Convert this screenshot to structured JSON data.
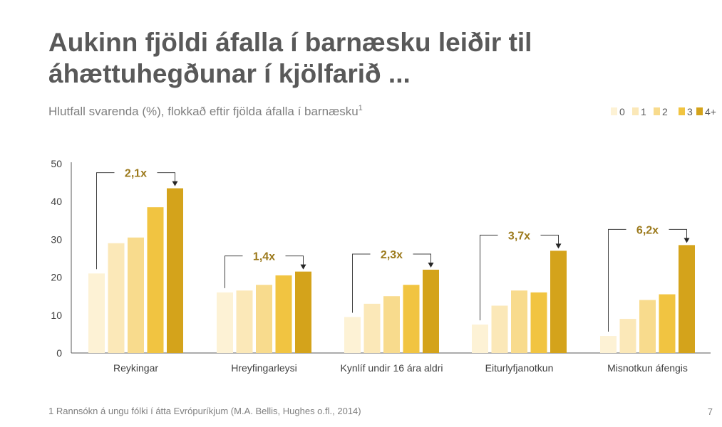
{
  "title_lines": [
    "Aukinn fjöldi áfalla í barnæsku leiðir til",
    "áhættuhegðunar í kjölfarið ..."
  ],
  "subtitle": "Hlutfall svarenda (%), flokkað eftir fjölda áfalla í barnæsku",
  "subtitle_sup": "1",
  "footnote": "1 Rannsókn á ungu fólki í átta Evrópuríkjum (M.A. Bellis, Hughes o.fl., 2014)",
  "page_number": "7",
  "chart_data": {
    "type": "bar",
    "categories": [
      "Reykingar",
      "Hreyfingarleysi",
      "Kynlíf undir 16 ára aldri",
      "Eiturlyfjanotkun",
      "Misnotkun áfengis"
    ],
    "series": [
      {
        "name": "0",
        "color": "#fdf2d5",
        "values": [
          21,
          16,
          9.5,
          7.5,
          4.5
        ]
      },
      {
        "name": "1",
        "color": "#fbe8b8",
        "values": [
          29,
          16.5,
          13,
          12.5,
          9
        ]
      },
      {
        "name": "2",
        "color": "#f8db8d",
        "values": [
          30.5,
          18,
          15,
          16.5,
          14
        ]
      },
      {
        "name": "3",
        "color": "#f1c441",
        "values": [
          38.5,
          20.5,
          18,
          16,
          15.5
        ]
      },
      {
        "name": "4+",
        "color": "#d4a31b",
        "values": [
          43.5,
          21.5,
          22,
          27,
          28.5
        ]
      }
    ],
    "multipliers": [
      "2,1x",
      "1,4x",
      "2,3x",
      "3,7x",
      "6,2x"
    ],
    "y_ticks": [
      "0",
      "10",
      "20",
      "30",
      "40",
      "50"
    ],
    "ylim": [
      0,
      50
    ],
    "grid": false,
    "legend_position": "top-right"
  }
}
